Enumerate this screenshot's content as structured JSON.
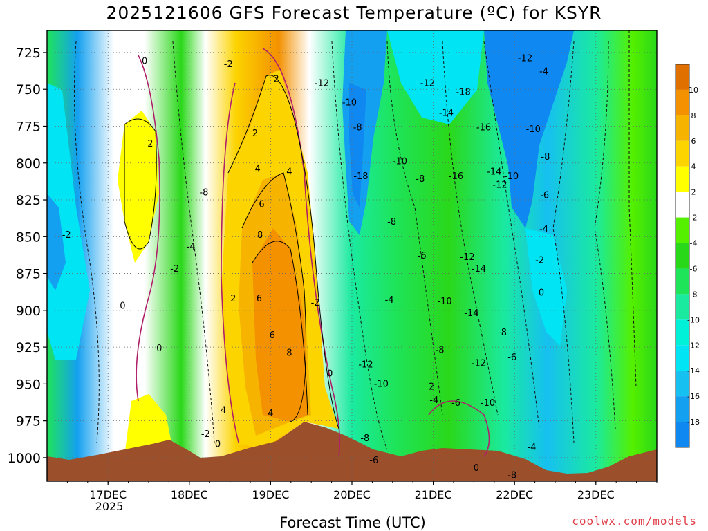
{
  "title": "2025121606 GFS Forecast Temperature (ºC) for KSYR",
  "xlabel": "Forecast Time (UTC)",
  "credit": "coolwx.com/models",
  "chart_data": {
    "type": "contour",
    "x_ticks": [
      "17DEC",
      "18DEC",
      "19DEC",
      "20DEC",
      "21DEC",
      "22DEC",
      "23DEC"
    ],
    "x_sub_label": "2025",
    "y_ticks": [
      725,
      750,
      775,
      800,
      825,
      850,
      875,
      900,
      925,
      950,
      975,
      1000
    ],
    "ylim": [
      1016,
      710
    ],
    "y_scale": "pressure (hPa), inverted",
    "grid": true,
    "colorbar": {
      "labels": [
        "10",
        "8",
        "6",
        "4",
        "2",
        "-2",
        "-4",
        "-6",
        "-8",
        "-10",
        "-12",
        "-14",
        "-16",
        "-18"
      ],
      "bands": [
        {
          "lo": 10,
          "hi": 12,
          "color": "#e07000"
        },
        {
          "lo": 8,
          "hi": 10,
          "color": "#f39100"
        },
        {
          "lo": 6,
          "hi": 8,
          "color": "#f6b400"
        },
        {
          "lo": 4,
          "hi": 6,
          "color": "#fcd400"
        },
        {
          "lo": 2,
          "hi": 4,
          "color": "#ffff00"
        },
        {
          "lo": -2,
          "hi": 2,
          "color": "#ffffff"
        },
        {
          "lo": -4,
          "hi": -2,
          "color": "#55f000"
        },
        {
          "lo": -6,
          "hi": -4,
          "color": "#2ad81a"
        },
        {
          "lo": -8,
          "hi": -6,
          "color": "#1ee45a"
        },
        {
          "lo": -10,
          "hi": -8,
          "color": "#1aeaa0"
        },
        {
          "lo": -12,
          "hi": -10,
          "color": "#00f0d8"
        },
        {
          "lo": -14,
          "hi": -12,
          "color": "#00e4f4"
        },
        {
          "lo": -16,
          "hi": -14,
          "color": "#16c0f0"
        },
        {
          "lo": -18,
          "hi": -16,
          "color": "#14a0f0"
        },
        {
          "lo": -20,
          "hi": -18,
          "color": "#1088f2"
        }
      ]
    },
    "contour_labels": [
      {
        "text": "0",
        "day": 17.45,
        "p": 731
      },
      {
        "text": "-2",
        "day": 18.48,
        "p": 733
      },
      {
        "text": "2",
        "day": 19.07,
        "p": 743
      },
      {
        "text": "-12",
        "day": 19.63,
        "p": 746
      },
      {
        "text": "-10",
        "day": 19.97,
        "p": 759
      },
      {
        "text": "-8",
        "day": 20.07,
        "p": 776
      },
      {
        "text": "-12",
        "day": 20.93,
        "p": 746
      },
      {
        "text": "-14",
        "day": 21.16,
        "p": 766
      },
      {
        "text": "-18",
        "day": 21.37,
        "p": 752
      },
      {
        "text": "-16",
        "day": 21.62,
        "p": 776
      },
      {
        "text": "-12",
        "day": 22.13,
        "p": 729
      },
      {
        "text": "-4",
        "day": 22.36,
        "p": 738
      },
      {
        "text": "-10",
        "day": 22.23,
        "p": 777
      },
      {
        "text": "-8",
        "day": 22.38,
        "p": 796
      },
      {
        "text": "2",
        "day": 17.52,
        "p": 787
      },
      {
        "text": "2",
        "day": 18.81,
        "p": 780
      },
      {
        "text": "4",
        "day": 18.84,
        "p": 804
      },
      {
        "text": "4",
        "day": 19.23,
        "p": 806
      },
      {
        "text": "6",
        "day": 18.89,
        "p": 828
      },
      {
        "text": "8",
        "day": 18.87,
        "p": 849
      },
      {
        "text": "-8",
        "day": 18.18,
        "p": 820
      },
      {
        "text": "-4",
        "day": 18.02,
        "p": 857
      },
      {
        "text": "-2",
        "day": 17.82,
        "p": 872
      },
      {
        "text": "-2",
        "day": 16.49,
        "p": 849
      },
      {
        "text": "0",
        "day": 17.18,
        "p": 897
      },
      {
        "text": "0",
        "day": 17.63,
        "p": 926
      },
      {
        "text": "-10",
        "day": 20.59,
        "p": 799
      },
      {
        "text": "-8",
        "day": 20.84,
        "p": 811
      },
      {
        "text": "-18",
        "day": 20.11,
        "p": 809
      },
      {
        "text": "-16",
        "day": 21.28,
        "p": 809
      },
      {
        "text": "-14",
        "day": 21.75,
        "p": 806
      },
      {
        "text": "-12",
        "day": 21.82,
        "p": 815
      },
      {
        "text": "-10",
        "day": 21.96,
        "p": 809
      },
      {
        "text": "-6",
        "day": 22.37,
        "p": 822
      },
      {
        "text": "-4",
        "day": 22.36,
        "p": 845
      },
      {
        "text": "-8",
        "day": 20.49,
        "p": 840
      },
      {
        "text": "-6",
        "day": 20.86,
        "p": 863
      },
      {
        "text": "-12",
        "day": 21.42,
        "p": 864
      },
      {
        "text": "-14",
        "day": 21.56,
        "p": 872
      },
      {
        "text": "-2",
        "day": 22.31,
        "p": 866
      },
      {
        "text": "0",
        "day": 22.33,
        "p": 888
      },
      {
        "text": "2",
        "day": 18.54,
        "p": 892
      },
      {
        "text": "6",
        "day": 18.86,
        "p": 892
      },
      {
        "text": "-2",
        "day": 19.55,
        "p": 895
      },
      {
        "text": "6",
        "day": 19.02,
        "p": 917
      },
      {
        "text": "8",
        "day": 19.23,
        "p": 929
      },
      {
        "text": "-4",
        "day": 20.46,
        "p": 893
      },
      {
        "text": "-10",
        "day": 21.14,
        "p": 894
      },
      {
        "text": "-14",
        "day": 21.47,
        "p": 902
      },
      {
        "text": "-8",
        "day": 21.85,
        "p": 915
      },
      {
        "text": "0",
        "day": 19.73,
        "p": 943
      },
      {
        "text": "-12",
        "day": 20.17,
        "p": 937
      },
      {
        "text": "-10",
        "day": 20.36,
        "p": 950
      },
      {
        "text": "-8",
        "day": 21.08,
        "p": 927
      },
      {
        "text": "-6",
        "day": 21.97,
        "p": 932
      },
      {
        "text": "-12",
        "day": 21.56,
        "p": 936
      },
      {
        "text": "2",
        "day": 20.98,
        "p": 952
      },
      {
        "text": "-4",
        "day": 21.01,
        "p": 961
      },
      {
        "text": "-6",
        "day": 21.28,
        "p": 963
      },
      {
        "text": "-10",
        "day": 21.67,
        "p": 963
      },
      {
        "text": "4",
        "day": 18.42,
        "p": 968
      },
      {
        "text": "4",
        "day": 19.0,
        "p": 970
      },
      {
        "text": "-2",
        "day": 18.2,
        "p": 984
      },
      {
        "text": "0",
        "day": 18.35,
        "p": 991
      },
      {
        "text": "-8",
        "day": 20.16,
        "p": 987
      },
      {
        "text": "-4",
        "day": 22.21,
        "p": 993
      },
      {
        "text": "-6",
        "day": 20.27,
        "p": 1002
      },
      {
        "text": "0",
        "day": 21.53,
        "p": 1007
      },
      {
        "text": "-8",
        "day": 21.97,
        "p": 1012
      }
    ]
  },
  "colors": {
    "terrain": "#9b4f2a",
    "pos_contour": "#000000",
    "zero_contour": "#b0206a",
    "neg_contour": "#111111",
    "grid": "#aaaaaa",
    "credit": "#e0404a"
  }
}
